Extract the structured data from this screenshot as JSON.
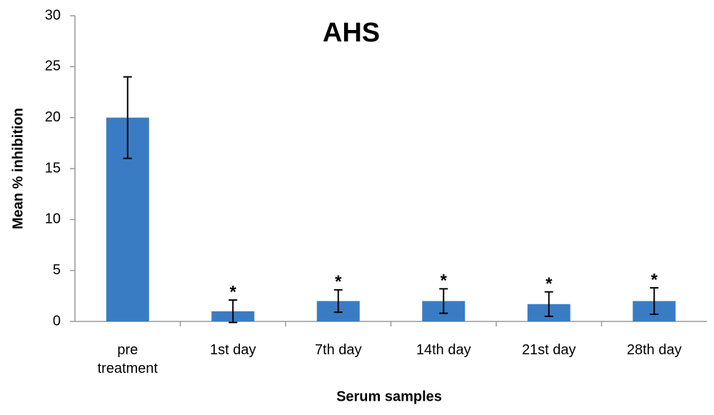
{
  "chart_data": {
    "type": "bar",
    "title": "AHS",
    "x_label": "Serum samples",
    "y_label": "Mean % inhibition",
    "categories": [
      "pre treatment",
      "1st day",
      "7th day",
      "14th day",
      "21st day",
      "28th day"
    ],
    "values": [
      20,
      1,
      2,
      2,
      1.7,
      2
    ],
    "errors": [
      4,
      1.1,
      1.1,
      1.2,
      1.2,
      1.3
    ],
    "annotations": [
      null,
      "*",
      "*",
      "*",
      "*",
      "*"
    ],
    "color": "#3a7cc4",
    "ylim": [
      0,
      30
    ],
    "yticks": [
      0,
      5,
      10,
      15,
      20,
      25,
      30
    ],
    "grid": false
  }
}
